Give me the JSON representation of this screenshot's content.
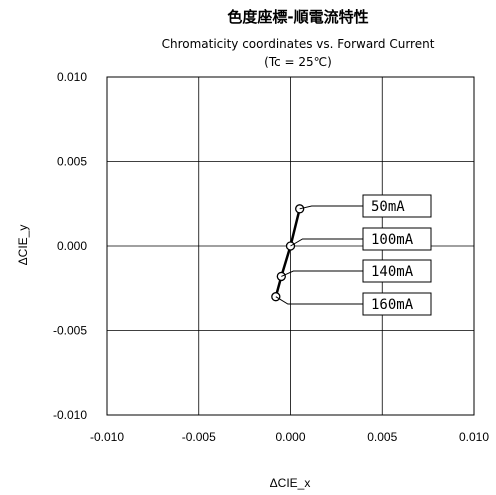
{
  "chart_data": {
    "type": "line",
    "title": "色度座標-順電流特性",
    "subtitle": "Chromaticity coordinates vs. Forward Current",
    "condition": "(Tc = 25℃)",
    "xlabel": "ΔCIE_x",
    "ylabel": "ΔCIE_y",
    "xlim": [
      -0.01,
      0.01
    ],
    "ylim": [
      -0.01,
      0.01
    ],
    "xticks": [
      "-0.010",
      "-0.005",
      "0.000",
      "0.005",
      "0.010"
    ],
    "yticks": [
      "0.010",
      "0.005",
      "0.000",
      "-0.005",
      "-0.010"
    ],
    "grid": true,
    "x": [
      0.0005,
      0.0,
      -0.0005,
      -0.0008
    ],
    "y": [
      0.0022,
      0.0,
      -0.0018,
      -0.003
    ],
    "point_labels": [
      "50mA",
      "100mA",
      "140mA",
      "160mA"
    ]
  }
}
